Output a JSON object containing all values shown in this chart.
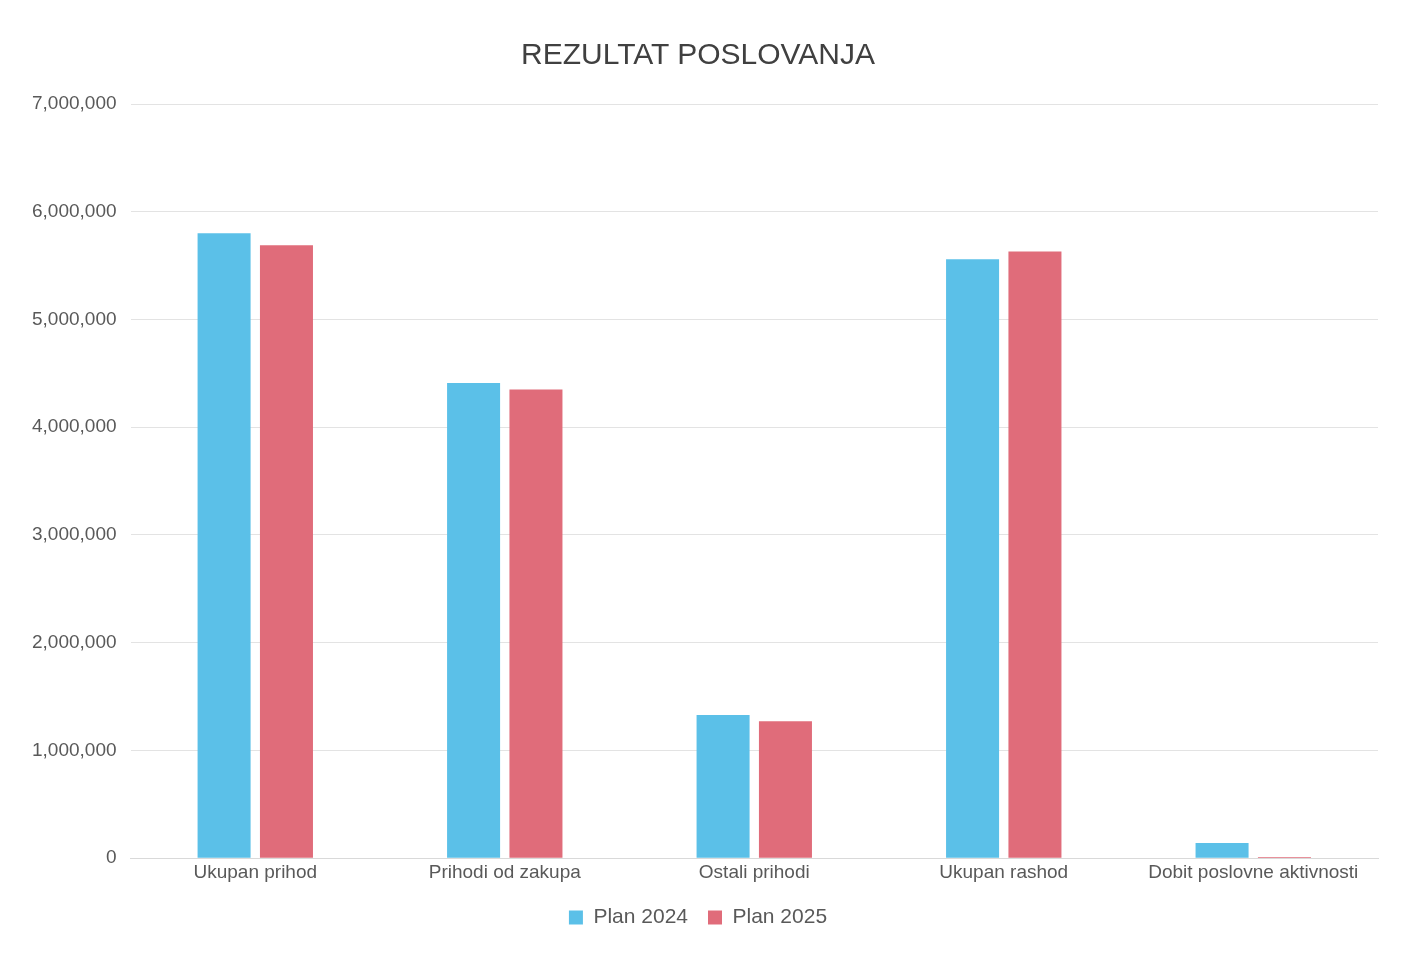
{
  "chart_data": {
    "type": "bar",
    "title": "REZULTAT POSLOVANJA",
    "categories": [
      "Ukupan prihod",
      "Prihodi od zakupa",
      "Ostali prihodi",
      "Ukupan rashod",
      "Dobit poslovne aktivnosti"
    ],
    "series": [
      {
        "name": "Plan 2024",
        "color": "#5bc0e8",
        "values": [
          5800000,
          4410000,
          1330000,
          5560000,
          140000
        ]
      },
      {
        "name": "Plan 2025",
        "color": "#e06c7a",
        "values": [
          5690000,
          4350000,
          1270000,
          5630000,
          10000
        ]
      }
    ],
    "ylim": [
      0,
      7000000
    ],
    "yticks": [
      0,
      {
        "value": 1000000,
        "label": "1,000,000"
      },
      {
        "value": 2000000,
        "label": "2,000,000"
      },
      {
        "value": 3000000,
        "label": "3,000,000"
      },
      {
        "value": 4000000,
        "label": "4,000,000"
      },
      {
        "value": 5000000,
        "label": "5,000,000"
      },
      {
        "value": 6000000,
        "label": "6,000,000"
      },
      {
        "value": 7000000,
        "label": "7,000,000"
      }
    ],
    "grid": "y",
    "legend": "bottom"
  }
}
